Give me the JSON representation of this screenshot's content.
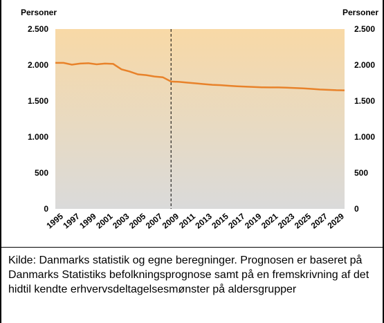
{
  "chart_data": {
    "type": "line",
    "ylabel": "Personer",
    "y2label": "Personer",
    "x": [
      1995,
      1996,
      1997,
      1998,
      1999,
      2000,
      2001,
      2002,
      2003,
      2004,
      2005,
      2006,
      2007,
      2008,
      2009,
      2010,
      2011,
      2012,
      2013,
      2014,
      2015,
      2016,
      2017,
      2018,
      2019,
      2020,
      2021,
      2022,
      2023,
      2024,
      2025,
      2026,
      2027,
      2028,
      2029,
      2030
    ],
    "values": [
      2030,
      2030,
      2005,
      2020,
      2025,
      2010,
      2020,
      2015,
      1940,
      1910,
      1870,
      1860,
      1840,
      1830,
      1770,
      1765,
      1755,
      1745,
      1735,
      1725,
      1720,
      1712,
      1705,
      1700,
      1695,
      1690,
      1688,
      1688,
      1685,
      1680,
      1675,
      1668,
      1660,
      1655,
      1650,
      1648
    ],
    "color": "#e8822a",
    "xlim": [
      1995,
      2030
    ],
    "xticks": [
      1995,
      1997,
      1999,
      2001,
      2003,
      2005,
      2007,
      2009,
      2011,
      2013,
      2015,
      2017,
      2019,
      2021,
      2023,
      2025,
      2027,
      2029
    ],
    "ylim": [
      0,
      2500
    ],
    "yticks": [
      0,
      {
        "value": 500,
        "label": "500"
      },
      {
        "value": 1000,
        "label": "1.000"
      },
      {
        "value": 1500,
        "label": "1.500"
      },
      {
        "value": 2000,
        "label": "2.000"
      },
      {
        "value": 2500,
        "label": "2.500"
      }
    ],
    "y2lim": [
      0,
      2500
    ],
    "y2ticks": [
      0,
      {
        "value": 500,
        "label": "500"
      },
      {
        "value": 1000,
        "label": "1.000"
      },
      {
        "value": 1500,
        "label": "1.500"
      },
      {
        "value": 2000,
        "label": "2.000"
      },
      {
        "value": 2500,
        "label": "2.500"
      }
    ],
    "divider_x": 2009,
    "source": "Kilde: Danmarks statistik og egne beregninger. Prognosen er baseret på Danmarks Statistiks befolkningsprognose samt på en fremskrivning af det hidtil kendte erhvervsdeltagelsesmønster på aldersgrupper"
  }
}
